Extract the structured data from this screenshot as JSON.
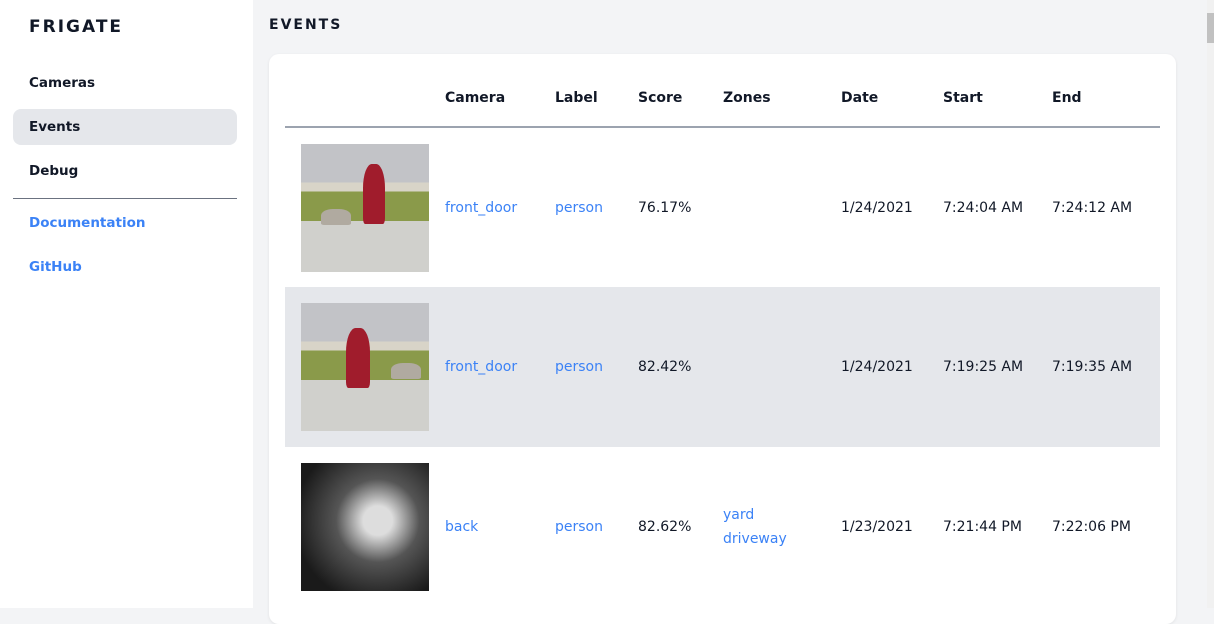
{
  "sidebar": {
    "logo": "FRIGATE",
    "items": [
      {
        "label": "Cameras"
      },
      {
        "label": "Events",
        "active": true
      },
      {
        "label": "Debug"
      }
    ],
    "links": [
      {
        "label": "Documentation"
      },
      {
        "label": "GitHub"
      }
    ]
  },
  "page": {
    "title": "EVENTS"
  },
  "table": {
    "headers": [
      "",
      "Camera",
      "Label",
      "Score",
      "Zones",
      "Date",
      "Start",
      "End"
    ],
    "rows": [
      {
        "camera": "front_door",
        "label": "person",
        "score": "76.17%",
        "zones": [
          "",
          ""
        ],
        "date": "1/24/2021",
        "start": "7:24:04 AM",
        "end": "7:24:12 AM"
      },
      {
        "camera": "front_door",
        "label": "person",
        "score": "82.42%",
        "zones": [
          "",
          ""
        ],
        "date": "1/24/2021",
        "start": "7:19:25 AM",
        "end": "7:19:35 AM"
      },
      {
        "camera": "back",
        "label": "person",
        "score": "82.62%",
        "zones": [
          "yard",
          "driveway"
        ],
        "date": "1/23/2021",
        "start": "7:21:44 PM",
        "end": "7:22:06 PM"
      }
    ]
  },
  "colors": {
    "accent": "#3b82f6",
    "active_bg": "#e5e7eb"
  }
}
